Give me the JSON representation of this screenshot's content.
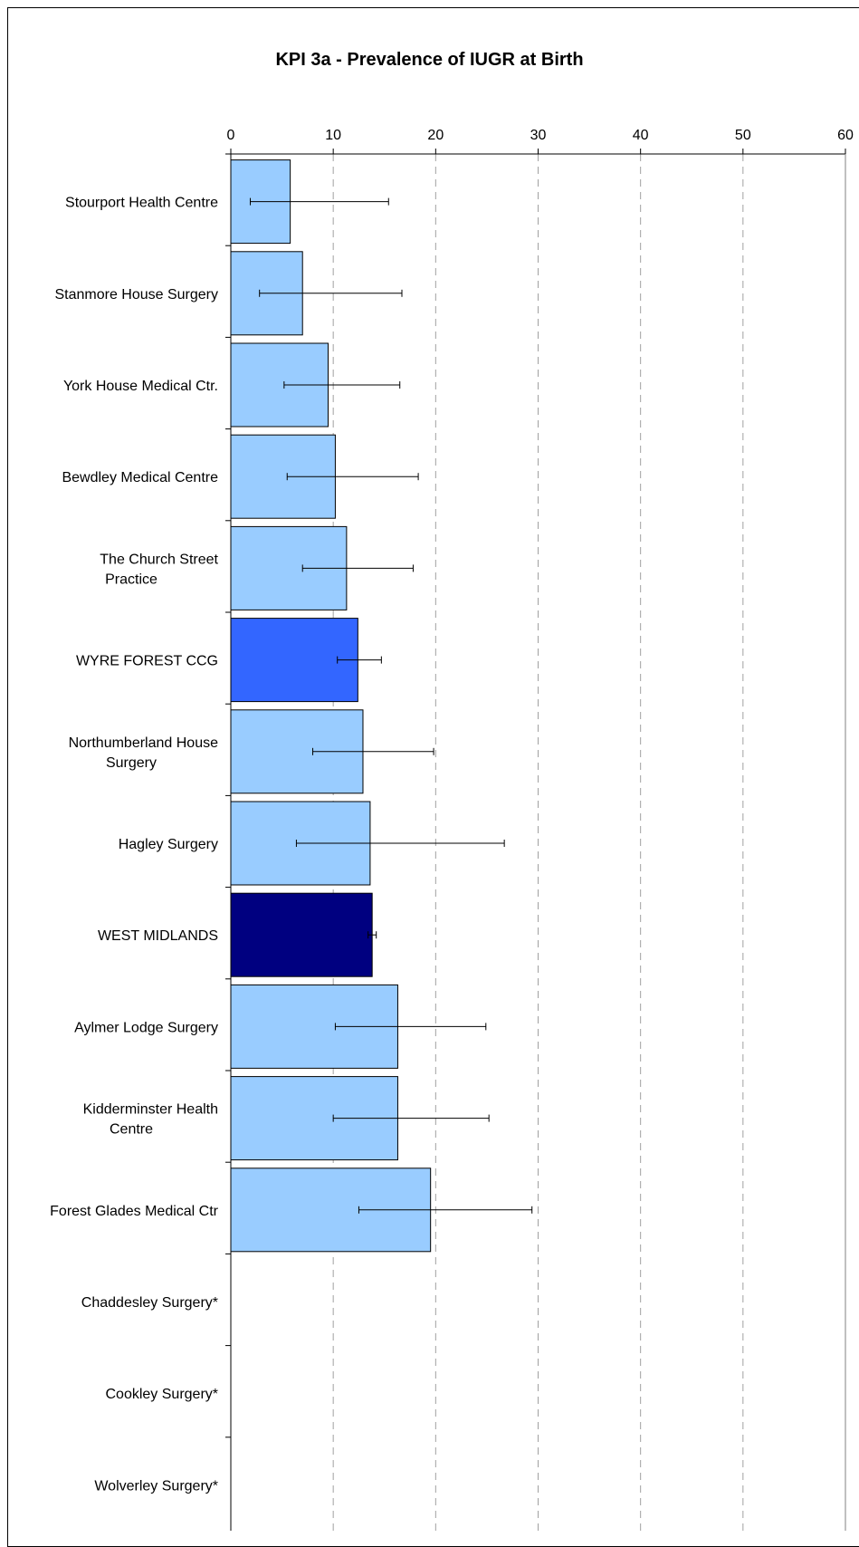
{
  "chart_data": {
    "type": "bar",
    "orientation": "horizontal",
    "title": "KPI 3a - Prevalence of IUGR at Birth",
    "xlabel": "",
    "ylabel": "",
    "xlim": [
      0,
      60
    ],
    "x_ticks": [
      0,
      10,
      20,
      30,
      40,
      50,
      60
    ],
    "grid": "vertical dashed",
    "categories": [
      {
        "label": [
          "Stourport Health Centre"
        ],
        "value": 5.8,
        "ci_low": 1.9,
        "ci_high": 15.4,
        "color": "#99ccff"
      },
      {
        "label": [
          "Stanmore House Surgery"
        ],
        "value": 7.0,
        "ci_low": 2.8,
        "ci_high": 16.7,
        "color": "#99ccff"
      },
      {
        "label": [
          "York House Medical Ctr."
        ],
        "value": 9.5,
        "ci_low": 5.2,
        "ci_high": 16.5,
        "color": "#99ccff"
      },
      {
        "label": [
          "Bewdley Medical Centre"
        ],
        "value": 10.2,
        "ci_low": 5.5,
        "ci_high": 18.3,
        "color": "#99ccff"
      },
      {
        "label": [
          "The Church Street",
          "Practice"
        ],
        "value": 11.3,
        "ci_low": 7.0,
        "ci_high": 17.8,
        "color": "#99ccff"
      },
      {
        "label": [
          "WYRE FOREST CCG"
        ],
        "value": 12.4,
        "ci_low": 10.4,
        "ci_high": 14.7,
        "color": "#3366ff"
      },
      {
        "label": [
          "Northumberland House",
          "Surgery"
        ],
        "value": 12.9,
        "ci_low": 8.0,
        "ci_high": 19.8,
        "color": "#99ccff"
      },
      {
        "label": [
          "Hagley Surgery"
        ],
        "value": 13.6,
        "ci_low": 6.4,
        "ci_high": 26.7,
        "color": "#99ccff"
      },
      {
        "label": [
          "WEST MIDLANDS"
        ],
        "value": 13.8,
        "ci_low": 13.4,
        "ci_high": 14.2,
        "color": "#000080"
      },
      {
        "label": [
          "Aylmer Lodge Surgery"
        ],
        "value": 16.3,
        "ci_low": 10.2,
        "ci_high": 24.9,
        "color": "#99ccff"
      },
      {
        "label": [
          "Kidderminster Health",
          "Centre"
        ],
        "value": 16.3,
        "ci_low": 10.0,
        "ci_high": 25.2,
        "color": "#99ccff"
      },
      {
        "label": [
          "Forest Glades Medical Ctr"
        ],
        "value": 19.5,
        "ci_low": 12.5,
        "ci_high": 29.4,
        "color": "#99ccff"
      },
      {
        "label": [
          "Chaddesley Surgery*"
        ],
        "value": null,
        "ci_low": null,
        "ci_high": null,
        "color": "#99ccff"
      },
      {
        "label": [
          "Cookley Surgery*"
        ],
        "value": null,
        "ci_low": null,
        "ci_high": null,
        "color": "#99ccff"
      },
      {
        "label": [
          "Wolverley Surgery*"
        ],
        "value": null,
        "ci_low": null,
        "ci_high": null,
        "color": "#99ccff"
      }
    ]
  }
}
